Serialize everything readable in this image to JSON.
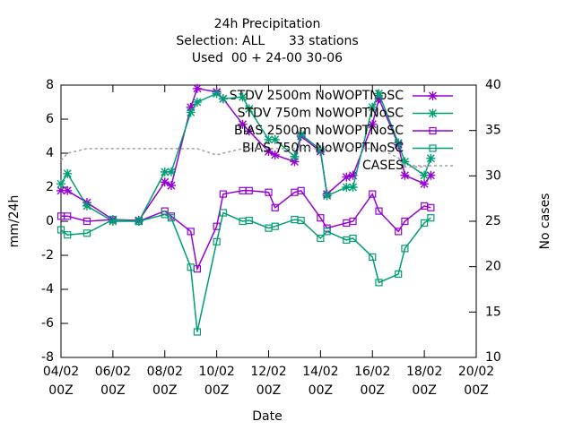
{
  "chart_data": {
    "type": "line",
    "title": [
      "24h Precipitation",
      "Selection: ALL      33 stations",
      "Used  00 + 24-00 30-06"
    ],
    "xlabel": "Date",
    "ylabel": "mm/24h",
    "y2label": "No cases",
    "x": [
      0,
      0.25,
      1,
      2,
      3,
      4,
      4.25,
      5,
      5.25,
      6,
      6.25,
      7,
      7.25,
      8,
      8.25,
      9,
      9.25,
      10,
      10.25,
      11,
      11.25,
      12,
      12.25,
      13,
      13.25,
      14,
      14.25
    ],
    "xlim": [
      0,
      16
    ],
    "xticks": [
      {
        "value": 0,
        "label": "04/02 00Z"
      },
      {
        "value": 2,
        "label": "06/02 00Z"
      },
      {
        "value": 4,
        "label": "08/02 00Z"
      },
      {
        "value": 6,
        "label": "10/02 00Z"
      },
      {
        "value": 8,
        "label": "12/02 00Z"
      },
      {
        "value": 10,
        "label": "14/02 00Z"
      },
      {
        "value": 12,
        "label": "16/02 00Z"
      },
      {
        "value": 14,
        "label": "18/02 00Z"
      },
      {
        "value": 16,
        "label": "20/02 00Z"
      }
    ],
    "ylim": [
      -8,
      8
    ],
    "yticks": [
      -8,
      -6,
      -4,
      -2,
      0,
      2,
      4,
      6,
      8
    ],
    "y2lim": [
      10,
      40
    ],
    "y2ticks": [
      10,
      15,
      20,
      25,
      30,
      35,
      40
    ],
    "legend": "upper right",
    "series": [
      {
        "name": "STDV 2500m NoWOPTNoSC",
        "color": "#9400d3",
        "marker": "star",
        "values": [
          1.8,
          1.8,
          1.1,
          0.1,
          0.05,
          2.3,
          2.1,
          6.7,
          7.8,
          7.6,
          7.2,
          5.7,
          5.3,
          4.1,
          3.9,
          3.5,
          5.0,
          4.1,
          1.6,
          2.6,
          2.7,
          5.7,
          7.2,
          4.5,
          2.7,
          2.2,
          2.7
        ]
      },
      {
        "name": "STDV 750m NoWOPTNoSC",
        "color": "#009e73",
        "marker": "star",
        "values": [
          2.2,
          2.8,
          0.9,
          0.0,
          0.0,
          2.9,
          2.9,
          6.4,
          7.0,
          7.5,
          7.2,
          7.3,
          6.6,
          4.8,
          4.8,
          3.8,
          5.1,
          4.2,
          1.5,
          2.0,
          2.0,
          6.7,
          7.5,
          4.6,
          3.5,
          2.7,
          3.7
        ]
      },
      {
        "name": "BIAS 2500m NoWOPTNoSC",
        "color": "#9400d3",
        "marker": "square",
        "values": [
          0.3,
          0.3,
          0.0,
          0.1,
          0.0,
          0.6,
          0.3,
          -0.6,
          -2.8,
          -0.3,
          1.6,
          1.8,
          1.8,
          1.7,
          0.8,
          1.7,
          1.8,
          0.2,
          -0.4,
          -0.1,
          0.0,
          1.6,
          0.6,
          -0.6,
          0.0,
          0.9,
          0.8
        ]
      },
      {
        "name": "BIAS 750m NoWOPTNoSC",
        "color": "#009e73",
        "marker": "square",
        "values": [
          -0.5,
          -0.8,
          -0.7,
          0.1,
          0.0,
          0.4,
          0.2,
          -2.7,
          -6.5,
          -1.2,
          0.5,
          0.0,
          0.05,
          -0.4,
          -0.3,
          0.1,
          0.05,
          -1.0,
          -0.6,
          -1.1,
          -1.0,
          -2.1,
          -3.6,
          -3.1,
          -1.6,
          -0.1,
          0.2
        ]
      },
      {
        "name": "CASES",
        "color": "#a0a0a0",
        "marker": "none",
        "dash": true,
        "axis": "y2",
        "values": [
          31.7,
          32.5,
          33,
          33,
          33,
          33,
          33,
          33,
          33,
          32.3,
          32.5,
          33,
          33,
          33,
          33,
          33,
          33,
          33,
          33,
          33,
          33,
          33,
          33,
          32,
          31,
          31,
          31
        ]
      }
    ]
  }
}
